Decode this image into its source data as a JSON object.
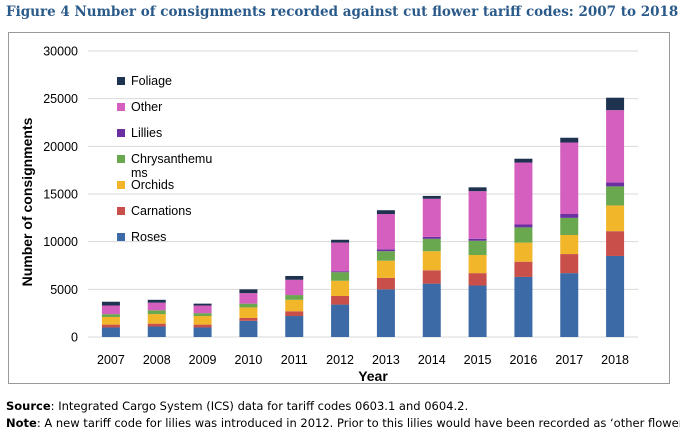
{
  "figure": {
    "title": "Figure 4 Number of consignments recorded against cut flower tariff codes: 2007 to 2018"
  },
  "notes": {
    "source_label": "Source",
    "source_text": ": Integrated Cargo System (ICS) data for tariff codes 0603.1 and 0604.2.",
    "note_label": "Note",
    "note_text": ": A new tariff code for lilies was introduced in 2012. Prior to this lilies would have been recorded as ‘other flowers’."
  },
  "chart_data": {
    "type": "bar",
    "stacked": true,
    "title": "",
    "xlabel": "Year",
    "ylabel": "Number of consignments",
    "ylim": [
      0,
      30000
    ],
    "yticks": [
      0,
      5000,
      10000,
      15000,
      20000,
      25000,
      30000
    ],
    "grid": true,
    "legend_position": "top-left",
    "categories": [
      "2007",
      "2008",
      "2009",
      "2010",
      "2011",
      "2012",
      "2013",
      "2014",
      "2015",
      "2016",
      "2017",
      "2018"
    ],
    "series": [
      {
        "name": "Roses",
        "color": "#3b6aa6",
        "values": [
          1000,
          1100,
          1000,
          1700,
          2200,
          3400,
          5000,
          5600,
          5400,
          6300,
          6700,
          8500
        ]
      },
      {
        "name": "Carnations",
        "color": "#c9504a",
        "values": [
          300,
          300,
          300,
          300,
          500,
          900,
          1200,
          1400,
          1300,
          1600,
          2000,
          2600
        ]
      },
      {
        "name": "Orchids",
        "color": "#f2b62b",
        "values": [
          800,
          1000,
          900,
          1100,
          1200,
          1600,
          1800,
          2000,
          1900,
          2000,
          2000,
          2700
        ]
      },
      {
        "name": "Chrysanthemu\nms",
        "color": "#6aa84f",
        "values": [
          300,
          400,
          300,
          400,
          500,
          900,
          1000,
          1300,
          1500,
          1600,
          1800,
          2000
        ]
      },
      {
        "name": "Lillies",
        "color": "#6a2fa0",
        "values": [
          0,
          0,
          0,
          0,
          0,
          100,
          200,
          200,
          200,
          300,
          400,
          400
        ]
      },
      {
        "name": "Other",
        "color": "#d45fbf",
        "values": [
          900,
          800,
          800,
          1100,
          1600,
          3000,
          3700,
          4000,
          5000,
          6500,
          7500,
          7600
        ]
      },
      {
        "name": "Foliage",
        "color": "#1f3350",
        "values": [
          400,
          300,
          200,
          400,
          400,
          300,
          400,
          300,
          400,
          400,
          500,
          1300
        ]
      }
    ]
  }
}
